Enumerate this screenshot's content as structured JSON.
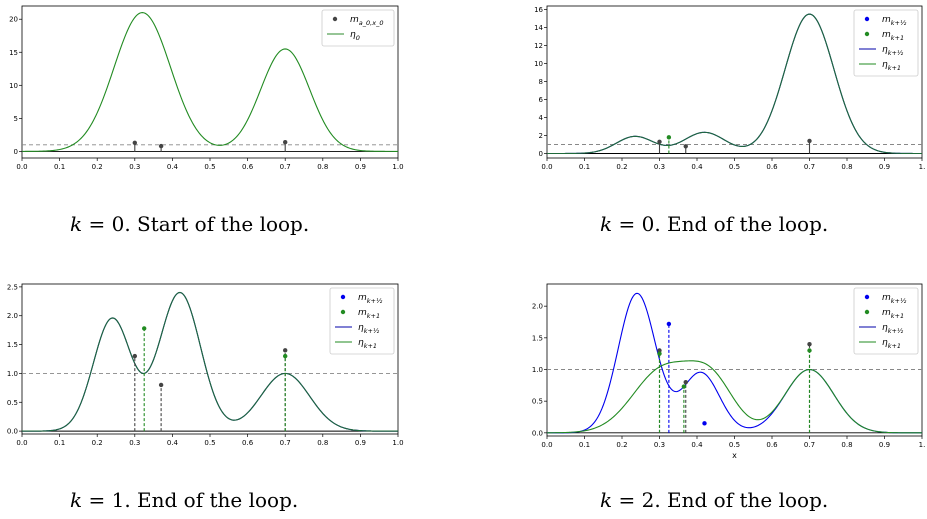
{
  "captions": [
    {
      "k": "k",
      "rest": " = 0. Start of the loop."
    },
    {
      "k": "k",
      "rest": " = 0. End of the loop."
    },
    {
      "k": "k",
      "rest": " = 1. End of the loop."
    },
    {
      "k": "k",
      "rest": " = 2. End of the loop."
    }
  ],
  "chart_data": [
    {
      "type": "line",
      "xlim": [
        0,
        1
      ],
      "ylim": [
        -1,
        22
      ],
      "xticks": [
        "0.0",
        "0.1",
        "0.2",
        "0.3",
        "0.4",
        "0.5",
        "0.6",
        "0.7",
        "0.8",
        "0.9",
        "1.0"
      ],
      "yticks": [
        0,
        5,
        10,
        15,
        20
      ],
      "ytick_labels": [
        "0",
        "5",
        "10",
        "15",
        "20"
      ],
      "threshold": 1,
      "xlabel": "",
      "legend": [
        {
          "label": "m_{a_0,x_0}",
          "kind": "dot",
          "color": "#444444"
        },
        {
          "label": "η_0",
          "kind": "line",
          "color": "#2e8b2e"
        }
      ],
      "curves": [
        {
          "color": "#228b22",
          "gaussians": [
            [
              21,
              0.32,
              0.075
            ],
            [
              15.5,
              0.7,
              0.065
            ]
          ]
        }
      ],
      "stems": [
        {
          "x": 0.3,
          "y": 1.3,
          "color": "#444444",
          "dashed": false
        },
        {
          "x": 0.37,
          "y": 0.8,
          "color": "#444444",
          "dashed": false
        },
        {
          "x": 0.7,
          "y": 1.4,
          "color": "#444444",
          "dashed": false
        }
      ]
    },
    {
      "type": "line",
      "xlim": [
        0,
        1
      ],
      "ylim": [
        -0.5,
        16.4
      ],
      "xticks": [
        "0.0",
        "0.1",
        "0.2",
        "0.3",
        "0.4",
        "0.5",
        "0.6",
        "0.7",
        "0.8",
        "0.9",
        "1."
      ],
      "yticks": [
        0,
        2,
        4,
        6,
        8,
        10,
        12,
        14,
        16
      ],
      "ytick_labels": [
        "0",
        "2",
        "4",
        "6",
        "8",
        "10",
        "12",
        "14",
        "16"
      ],
      "threshold": 1,
      "xlabel": "",
      "legend": [
        {
          "label": "m_{k+1/2}",
          "kind": "dot",
          "color": "#0000ee"
        },
        {
          "label": "m_{k+1}",
          "kind": "dot",
          "color": "#228b22"
        },
        {
          "label": "η_{k+1/2}",
          "kind": "line",
          "color": "#0000aa"
        },
        {
          "label": "η_{k+1}",
          "kind": "line",
          "color": "#228b22"
        }
      ],
      "curves": [
        {
          "color": "#0000aa",
          "gaussians": [
            [
              1.9,
              0.235,
              0.05
            ],
            [
              2.35,
              0.42,
              0.055
            ],
            [
              15.5,
              0.7,
              0.065
            ]
          ]
        },
        {
          "color": "#1f6a3a",
          "gaussians": [
            [
              1.9,
              0.235,
              0.05
            ],
            [
              2.35,
              0.42,
              0.055
            ],
            [
              15.5,
              0.7,
              0.065
            ]
          ]
        }
      ],
      "stems": [
        {
          "x": 0.3,
          "y": 1.3,
          "color": "#444444",
          "dashed": false
        },
        {
          "x": 0.325,
          "y": 1.8,
          "color": "#228b22",
          "dashed": true
        },
        {
          "x": 0.37,
          "y": 0.8,
          "color": "#444444",
          "dashed": false
        },
        {
          "x": 0.7,
          "y": 1.4,
          "color": "#444444",
          "dashed": false
        }
      ]
    },
    {
      "type": "line",
      "xlim": [
        0,
        1
      ],
      "ylim": [
        -0.05,
        2.55
      ],
      "xticks": [
        "0.0",
        "0.1",
        "0.2",
        "0.3",
        "0.4",
        "0.5",
        "0.6",
        "0.7",
        "0.8",
        "0.9",
        "1.0"
      ],
      "yticks": [
        0,
        0.5,
        1,
        1.5,
        2,
        2.5
      ],
      "ytick_labels": [
        "0.0",
        "0.5",
        "1.0",
        "1.5",
        "2.0",
        "2.5"
      ],
      "threshold": 1,
      "xlabel": "",
      "legend": [
        {
          "label": "m_{k+1/2}",
          "kind": "dot",
          "color": "#0000ee"
        },
        {
          "label": "m_{k+1}",
          "kind": "dot",
          "color": "#228b22"
        },
        {
          "label": "η_{k+1/2}",
          "kind": "line",
          "color": "#0000aa"
        },
        {
          "label": "η_{k+1}",
          "kind": "line",
          "color": "#228b22"
        }
      ],
      "curves": [
        {
          "color": "#0000aa",
          "gaussians": [
            [
              1.95,
              0.24,
              0.05
            ],
            [
              2.4,
              0.42,
              0.055
            ],
            [
              1.0,
              0.7,
              0.065
            ]
          ]
        },
        {
          "color": "#1f6a3a",
          "gaussians": [
            [
              1.95,
              0.24,
              0.05
            ],
            [
              2.4,
              0.42,
              0.055
            ],
            [
              1.0,
              0.7,
              0.065
            ]
          ]
        }
      ],
      "stems": [
        {
          "x": 0.3,
          "y": 1.3,
          "color": "#444444",
          "dashed": true
        },
        {
          "x": 0.325,
          "y": 1.78,
          "color": "#228b22",
          "dashed": true
        },
        {
          "x": 0.37,
          "y": 0.8,
          "color": "#444444",
          "dashed": true
        },
        {
          "x": 0.7,
          "y": 1.4,
          "color": "#444444",
          "dashed": true
        },
        {
          "x": 0.7,
          "y": 1.3,
          "color": "#228b22",
          "dashed": true
        }
      ]
    },
    {
      "type": "line",
      "xlim": [
        0,
        1
      ],
      "ylim": [
        -0.05,
        2.35
      ],
      "xticks": [
        "0.0",
        "0.1",
        "0.2",
        "0.3",
        "0.4",
        "0.5",
        "0.6",
        "0.7",
        "0.8",
        "0.9",
        "1."
      ],
      "yticks": [
        0,
        0.5,
        1,
        1.5,
        2
      ],
      "ytick_labels": [
        "0.0",
        "0.5",
        "1.0",
        "1.5",
        "2.0"
      ],
      "threshold": 1,
      "xlabel": "x",
      "legend": [
        {
          "label": "m_{k+1/2}",
          "kind": "dot",
          "color": "#0000ee"
        },
        {
          "label": "m_{k+1}",
          "kind": "dot",
          "color": "#228b22"
        },
        {
          "label": "η_{k+1/2}",
          "kind": "line",
          "color": "#0000aa"
        },
        {
          "label": "η_{k+1}",
          "kind": "line",
          "color": "#228b22"
        }
      ],
      "curves": [
        {
          "color": "#0000ee",
          "gaussians": [
            [
              2.2,
              0.24,
              0.05
            ],
            [
              0.95,
              0.41,
              0.05
            ],
            [
              1.0,
              0.7,
              0.065
            ]
          ]
        },
        {
          "color": "#228b22",
          "gaussians": [
            [
              1.0,
              0.31,
              0.08
            ],
            [
              0.75,
              0.44,
              0.06
            ],
            [
              1.0,
              0.7,
              0.065
            ]
          ]
        }
      ],
      "stems": [
        {
          "x": 0.3,
          "y": 1.3,
          "color": "#444444",
          "dashed": true
        },
        {
          "x": 0.3,
          "y": 1.25,
          "color": "#228b22",
          "dashed": true
        },
        {
          "x": 0.325,
          "y": 1.72,
          "color": "#0000ee",
          "dashed": true
        },
        {
          "x": 0.37,
          "y": 0.8,
          "color": "#444444",
          "dashed": true
        },
        {
          "x": 0.365,
          "y": 0.73,
          "color": "#228b22",
          "dashed": true
        },
        {
          "x": 0.42,
          "y": 0.15,
          "color": "#0000ee",
          "dashed": false,
          "nostem": true
        },
        {
          "x": 0.7,
          "y": 1.4,
          "color": "#444444",
          "dashed": true
        },
        {
          "x": 0.7,
          "y": 1.3,
          "color": "#228b22",
          "dashed": true
        }
      ]
    }
  ]
}
